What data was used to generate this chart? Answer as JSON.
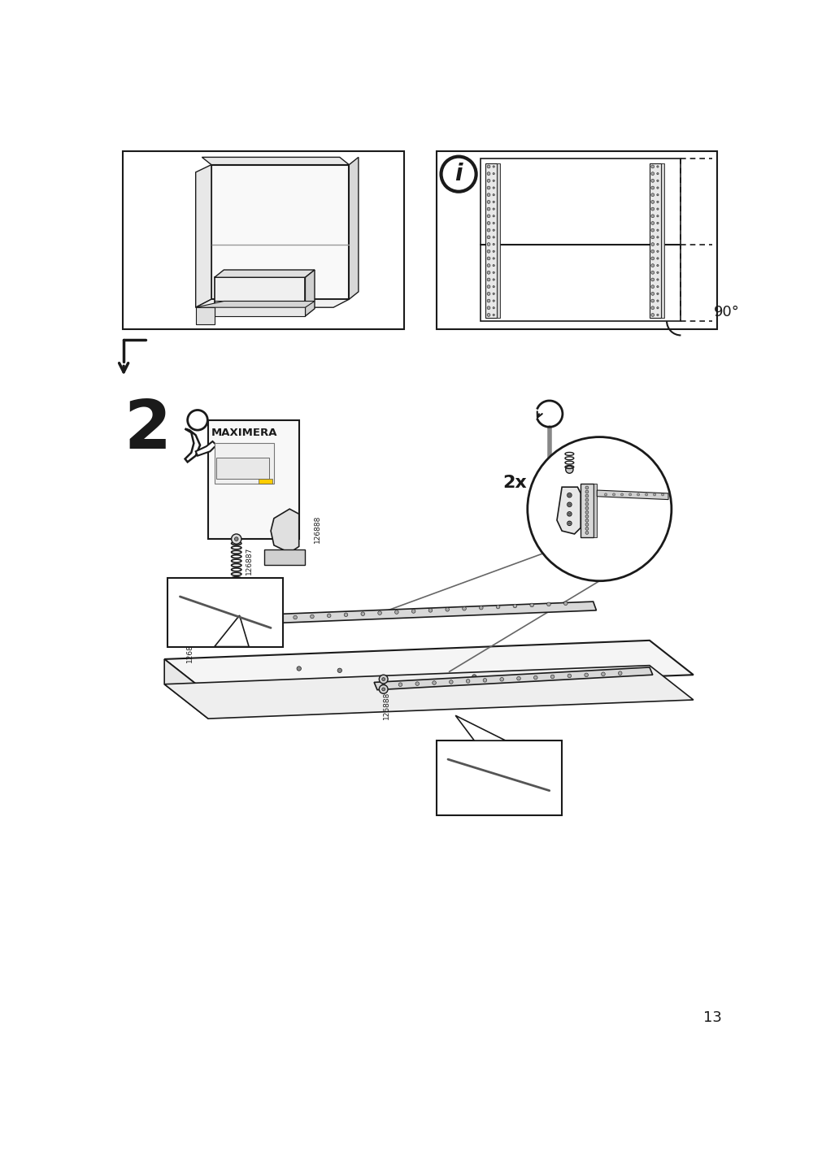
{
  "page_number": "13",
  "background_color": "#ffffff",
  "line_color": "#1a1a1a",
  "step2_label": "2",
  "maximera_label": "MAXIMERA",
  "part_number_1": "126887",
  "part_number_2": "126888",
  "angle_label": "90°",
  "quantity_label": "2x",
  "info_symbol": "i"
}
